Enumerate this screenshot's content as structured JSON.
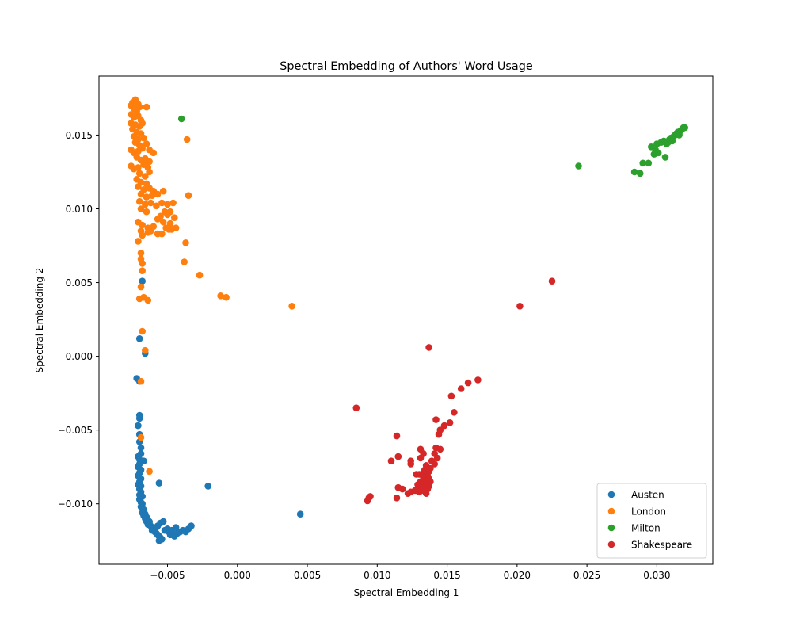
{
  "chart_data": {
    "type": "scatter",
    "title": "Spectral Embedding of Authors' Word Usage",
    "xlabel": "Spectral Embedding 1",
    "ylabel": "Spectral Embedding 2",
    "xlim": [
      -0.0099,
      0.034
    ],
    "ylim": [
      -0.0141,
      0.019
    ],
    "x_ticks": [
      -0.005,
      0.0,
      0.005,
      0.01,
      0.015,
      0.02,
      0.025,
      0.03
    ],
    "x_tick_labels": [
      "−0.005",
      "0.000",
      "0.005",
      "0.010",
      "0.015",
      "0.020",
      "0.025",
      "0.030"
    ],
    "y_ticks": [
      -0.01,
      -0.005,
      0.0,
      0.005,
      0.01,
      0.015
    ],
    "y_tick_labels": [
      "−0.010",
      "−0.005",
      "0.000",
      "0.005",
      "0.010",
      "0.015"
    ],
    "grid": false,
    "legend_position": "lower-right",
    "series": [
      {
        "name": "Austen",
        "color": "#1f77b4",
        "points": [
          [
            -0.0068,
            0.0051
          ],
          [
            -0.007,
            0.0012
          ],
          [
            -0.0066,
            0.0002
          ],
          [
            -0.0072,
            -0.0015
          ],
          [
            -0.007,
            -0.0017
          ],
          [
            -0.007,
            -0.004
          ],
          [
            -0.007,
            -0.0042
          ],
          [
            -0.0071,
            -0.0047
          ],
          [
            -0.007,
            -0.0053
          ],
          [
            -0.007,
            -0.0058
          ],
          [
            -0.0069,
            -0.0062
          ],
          [
            -0.0069,
            -0.0066
          ],
          [
            -0.0071,
            -0.0068
          ],
          [
            -0.007,
            -0.007
          ],
          [
            -0.0067,
            -0.0071
          ],
          [
            -0.007,
            -0.0073
          ],
          [
            -0.0071,
            -0.0075
          ],
          [
            -0.0069,
            -0.0077
          ],
          [
            -0.007,
            -0.0079
          ],
          [
            -0.0071,
            -0.0081
          ],
          [
            -0.0069,
            -0.0083
          ],
          [
            -0.007,
            -0.0085
          ],
          [
            -0.0071,
            -0.0087
          ],
          [
            -0.0069,
            -0.0088
          ],
          [
            -0.007,
            -0.009
          ],
          [
            -0.0069,
            -0.0092
          ],
          [
            -0.007,
            -0.0094
          ],
          [
            -0.0068,
            -0.0095
          ],
          [
            -0.007,
            -0.0097
          ],
          [
            -0.0069,
            -0.0099
          ],
          [
            -0.0068,
            -0.01
          ],
          [
            -0.0069,
            -0.0102
          ],
          [
            -0.0068,
            -0.0103
          ],
          [
            -0.0067,
            -0.0104
          ],
          [
            -0.0068,
            -0.0106
          ],
          [
            -0.0066,
            -0.0107
          ],
          [
            -0.0067,
            -0.0108
          ],
          [
            -0.0065,
            -0.0109
          ],
          [
            -0.0066,
            -0.011
          ],
          [
            -0.0064,
            -0.0111
          ],
          [
            -0.0065,
            -0.0112
          ],
          [
            -0.0063,
            -0.0113
          ],
          [
            -0.0064,
            -0.0114
          ],
          [
            -0.0062,
            -0.0115
          ],
          [
            -0.0061,
            -0.0116
          ],
          [
            -0.006,
            -0.0117
          ],
          [
            -0.0061,
            -0.0118
          ],
          [
            -0.0059,
            -0.0119
          ],
          [
            -0.0058,
            -0.012
          ],
          [
            -0.0057,
            -0.0121
          ],
          [
            -0.0056,
            -0.0122
          ],
          [
            -0.0055,
            -0.0123
          ],
          [
            -0.0056,
            -0.0125
          ],
          [
            -0.0054,
            -0.0124
          ],
          [
            -0.0057,
            -0.0115
          ],
          [
            -0.0055,
            -0.0113
          ],
          [
            -0.0053,
            -0.0112
          ],
          [
            -0.0052,
            -0.0118
          ],
          [
            -0.005,
            -0.0117
          ],
          [
            -0.0049,
            -0.0119
          ],
          [
            -0.0048,
            -0.0121
          ],
          [
            -0.0047,
            -0.0118
          ],
          [
            -0.0045,
            -0.0122
          ],
          [
            -0.0044,
            -0.0116
          ],
          [
            -0.0043,
            -0.012
          ],
          [
            -0.0041,
            -0.0119
          ],
          [
            -0.0039,
            -0.0118
          ],
          [
            -0.0037,
            -0.0119
          ],
          [
            -0.0035,
            -0.0117
          ],
          [
            -0.0033,
            -0.0115
          ],
          [
            -0.0056,
            -0.0086
          ],
          [
            -0.0021,
            -0.0088
          ],
          [
            0.0045,
            -0.0107
          ],
          [
            -0.0058,
            -0.0116
          ],
          [
            -0.0063,
            -0.0112
          ]
        ]
      },
      {
        "name": "London",
        "color": "#ff7f0e",
        "points": [
          [
            -0.0076,
            0.017
          ],
          [
            -0.0075,
            0.0172
          ],
          [
            -0.0073,
            0.0174
          ],
          [
            -0.0071,
            0.0171
          ],
          [
            -0.0074,
            0.0168
          ],
          [
            -0.0072,
            0.0166
          ],
          [
            -0.007,
            0.0169
          ],
          [
            -0.0065,
            0.0169
          ],
          [
            -0.0076,
            0.0164
          ],
          [
            -0.0074,
            0.0162
          ],
          [
            -0.0071,
            0.0163
          ],
          [
            -0.0069,
            0.016
          ],
          [
            -0.0076,
            0.0158
          ],
          [
            -0.0073,
            0.0157
          ],
          [
            -0.007,
            0.0156
          ],
          [
            -0.0068,
            0.0158
          ],
          [
            -0.0075,
            0.0154
          ],
          [
            -0.0072,
            0.0152
          ],
          [
            -0.0069,
            0.0151
          ],
          [
            -0.0074,
            0.0149
          ],
          [
            -0.0071,
            0.0147
          ],
          [
            -0.0067,
            0.0148
          ],
          [
            -0.0073,
            0.0145
          ],
          [
            -0.007,
            0.0143
          ],
          [
            -0.0065,
            0.0144
          ],
          [
            -0.0076,
            0.014
          ],
          [
            -0.0074,
            0.0138
          ],
          [
            -0.0071,
            0.0139
          ],
          [
            -0.0068,
            0.0141
          ],
          [
            -0.0063,
            0.014
          ],
          [
            -0.006,
            0.0138
          ],
          [
            -0.0072,
            0.0135
          ],
          [
            -0.0069,
            0.0133
          ],
          [
            -0.0066,
            0.0134
          ],
          [
            -0.0063,
            0.0132
          ],
          [
            -0.0076,
            0.0129
          ],
          [
            -0.0074,
            0.0127
          ],
          [
            -0.0071,
            0.0128
          ],
          [
            -0.0067,
            0.013
          ],
          [
            -0.0064,
            0.0128
          ],
          [
            -0.007,
            0.0124
          ],
          [
            -0.0066,
            0.0122
          ],
          [
            -0.0063,
            0.0125
          ],
          [
            -0.0072,
            0.012
          ],
          [
            -0.0069,
            0.0118
          ],
          [
            -0.0065,
            0.0117
          ],
          [
            -0.0071,
            0.0115
          ],
          [
            -0.0067,
            0.0113
          ],
          [
            -0.0063,
            0.0114
          ],
          [
            -0.006,
            0.0112
          ],
          [
            -0.0069,
            0.011
          ],
          [
            -0.0065,
            0.0108
          ],
          [
            -0.0061,
            0.0109
          ],
          [
            -0.0057,
            0.011
          ],
          [
            -0.0053,
            0.0112
          ],
          [
            -0.007,
            0.0105
          ],
          [
            -0.0066,
            0.0103
          ],
          [
            -0.0062,
            0.0104
          ],
          [
            -0.0058,
            0.0102
          ],
          [
            -0.0054,
            0.0104
          ],
          [
            -0.005,
            0.0103
          ],
          [
            -0.0046,
            0.0104
          ],
          [
            -0.0069,
            0.01
          ],
          [
            -0.0065,
            0.0098
          ],
          [
            -0.0052,
            0.0098
          ],
          [
            -0.0048,
            0.0098
          ],
          [
            -0.0055,
            0.0095
          ],
          [
            -0.005,
            0.0096
          ],
          [
            -0.0045,
            0.0094
          ],
          [
            -0.0057,
            0.0093
          ],
          [
            -0.0053,
            0.0091
          ],
          [
            -0.0048,
            0.009
          ],
          [
            -0.0071,
            0.0091
          ],
          [
            -0.0068,
            0.0089
          ],
          [
            -0.0064,
            0.0087
          ],
          [
            -0.006,
            0.0088
          ],
          [
            -0.0051,
            0.0087
          ],
          [
            -0.0047,
            0.0086
          ],
          [
            -0.0044,
            0.0087
          ],
          [
            -0.0069,
            0.0085
          ],
          [
            -0.0064,
            0.0084
          ],
          [
            -0.0057,
            0.0083
          ],
          [
            -0.0054,
            0.0083
          ],
          [
            -0.0049,
            0.0086
          ],
          [
            -0.0062,
            0.0085
          ],
          [
            -0.0068,
            0.0082
          ],
          [
            -0.0071,
            0.0078
          ],
          [
            -0.0069,
            0.007
          ],
          [
            -0.0069,
            0.0066
          ],
          [
            -0.0068,
            0.0063
          ],
          [
            -0.0068,
            0.0058
          ],
          [
            -0.0069,
            0.0047
          ],
          [
            -0.007,
            0.0039
          ],
          [
            -0.0067,
            0.004
          ],
          [
            -0.0064,
            0.0038
          ],
          [
            -0.0068,
            0.0017
          ],
          [
            -0.0066,
            0.0004
          ],
          [
            -0.0069,
            -0.0017
          ],
          [
            -0.0069,
            -0.0055
          ],
          [
            -0.0063,
            -0.0078
          ],
          [
            -0.0036,
            0.0147
          ],
          [
            -0.0035,
            0.0109
          ],
          [
            -0.0037,
            0.0077
          ],
          [
            -0.0038,
            0.0064
          ],
          [
            -0.0027,
            0.0055
          ],
          [
            -0.0012,
            0.0041
          ],
          [
            -0.0008,
            0.004
          ],
          [
            0.0039,
            0.0034
          ]
        ]
      },
      {
        "name": "Milton",
        "color": "#2ca02c",
        "points": [
          [
            -0.004,
            0.0161
          ],
          [
            0.0244,
            0.0129
          ],
          [
            0.0284,
            0.0125
          ],
          [
            0.0288,
            0.0124
          ],
          [
            0.029,
            0.0131
          ],
          [
            0.0294,
            0.0131
          ],
          [
            0.0296,
            0.0142
          ],
          [
            0.0298,
            0.0137
          ],
          [
            0.0299,
            0.014
          ],
          [
            0.03,
            0.0144
          ],
          [
            0.0301,
            0.0138
          ],
          [
            0.0303,
            0.0145
          ],
          [
            0.0305,
            0.0146
          ],
          [
            0.0306,
            0.0135
          ],
          [
            0.0307,
            0.0144
          ],
          [
            0.0308,
            0.0145
          ],
          [
            0.0309,
            0.0147
          ],
          [
            0.031,
            0.0148
          ],
          [
            0.0311,
            0.0146
          ],
          [
            0.0312,
            0.0149
          ],
          [
            0.0313,
            0.015
          ],
          [
            0.0314,
            0.0151
          ],
          [
            0.0315,
            0.0152
          ],
          [
            0.0316,
            0.015
          ],
          [
            0.0317,
            0.0153
          ],
          [
            0.0318,
            0.0154
          ],
          [
            0.0319,
            0.0155
          ],
          [
            0.032,
            0.0155
          ]
        ]
      },
      {
        "name": "Shakespeare",
        "color": "#d62728",
        "points": [
          [
            0.0225,
            0.0051
          ],
          [
            0.0202,
            0.0034
          ],
          [
            0.0137,
            0.0006
          ],
          [
            0.0172,
            -0.0016
          ],
          [
            0.0165,
            -0.0018
          ],
          [
            0.016,
            -0.0022
          ],
          [
            0.0153,
            -0.0027
          ],
          [
            0.0155,
            -0.0038
          ],
          [
            0.0085,
            -0.0035
          ],
          [
            0.0142,
            -0.0043
          ],
          [
            0.0152,
            -0.0045
          ],
          [
            0.0148,
            -0.0047
          ],
          [
            0.0145,
            -0.005
          ],
          [
            0.0144,
            -0.0053
          ],
          [
            0.0114,
            -0.0054
          ],
          [
            0.0142,
            -0.0062
          ],
          [
            0.0145,
            -0.0063
          ],
          [
            0.0131,
            -0.0063
          ],
          [
            0.0133,
            -0.0066
          ],
          [
            0.0131,
            -0.0069
          ],
          [
            0.0115,
            -0.0068
          ],
          [
            0.011,
            -0.0071
          ],
          [
            0.0124,
            -0.0071
          ],
          [
            0.0124,
            -0.0073
          ],
          [
            0.0141,
            -0.0066
          ],
          [
            0.0143,
            -0.0069
          ],
          [
            0.0139,
            -0.0071
          ],
          [
            0.0141,
            -0.0073
          ],
          [
            0.0135,
            -0.0074
          ],
          [
            0.0138,
            -0.0076
          ],
          [
            0.0134,
            -0.0077
          ],
          [
            0.0137,
            -0.0078
          ],
          [
            0.0133,
            -0.0079
          ],
          [
            0.0128,
            -0.008
          ],
          [
            0.0136,
            -0.0081
          ],
          [
            0.0133,
            -0.0082
          ],
          [
            0.013,
            -0.008
          ],
          [
            0.0137,
            -0.0083
          ],
          [
            0.0134,
            -0.0084
          ],
          [
            0.0131,
            -0.0085
          ],
          [
            0.0138,
            -0.0085
          ],
          [
            0.0135,
            -0.0086
          ],
          [
            0.0132,
            -0.0087
          ],
          [
            0.0129,
            -0.0087
          ],
          [
            0.0137,
            -0.0088
          ],
          [
            0.0134,
            -0.0089
          ],
          [
            0.0131,
            -0.009
          ],
          [
            0.0128,
            -0.0091
          ],
          [
            0.0136,
            -0.009
          ],
          [
            0.0133,
            -0.0091
          ],
          [
            0.013,
            -0.0092
          ],
          [
            0.0127,
            -0.0091
          ],
          [
            0.0124,
            -0.0092
          ],
          [
            0.0122,
            -0.0093
          ],
          [
            0.0135,
            -0.0093
          ],
          [
            0.0115,
            -0.0089
          ],
          [
            0.0118,
            -0.009
          ],
          [
            0.0114,
            -0.0096
          ],
          [
            0.0095,
            -0.0095
          ],
          [
            0.0094,
            -0.0096
          ],
          [
            0.0093,
            -0.0098
          ]
        ]
      }
    ]
  }
}
